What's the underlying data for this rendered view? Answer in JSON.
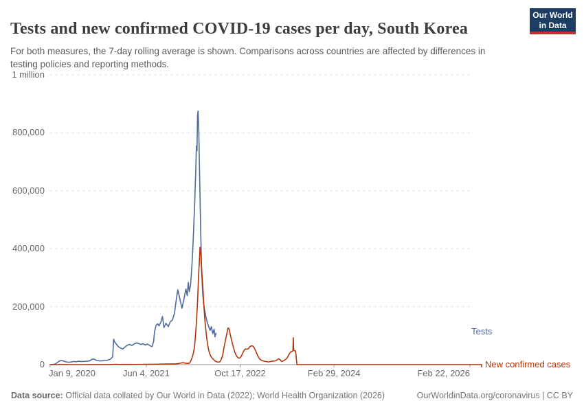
{
  "header": {
    "title": "Tests and new confirmed COVID-19 cases per day, South Korea",
    "subtitle": "For both measures, the 7-day rolling average is shown. Comparisons across countries are affected by differences in testing policies and reporting methods.",
    "logo": {
      "line1": "Our World",
      "line2": "in Data"
    }
  },
  "footer": {
    "source_label": "Data source:",
    "source_text": " Official data collated by Our World in Data (2022); World Health Organization (2026)",
    "link": "OurWorldinData.org/coronavirus | CC BY"
  },
  "colors": {
    "tests": "#4C6A9C",
    "cases": "#B13507",
    "logo_bg": "#1d3d63",
    "logo_bar": "#c4302b"
  },
  "chart_data": {
    "type": "line",
    "title": "Tests and new confirmed COVID-19 cases per day, South Korea",
    "grid": "dashed-horizontal",
    "legend_position": "right-of-line-end",
    "x_axis": {
      "type": "date",
      "min": "2020-01-09",
      "max": "2026-02-22",
      "ticks": [
        {
          "date": "2020-01-09",
          "label": "Jan 9, 2020",
          "align": "left"
        },
        {
          "date": "2021-06-04",
          "label": "Jun 4, 2021",
          "align": "center"
        },
        {
          "date": "2022-10-17",
          "label": "Oct 17, 2022",
          "align": "center"
        },
        {
          "date": "2024-02-29",
          "label": "Feb 29, 2024",
          "align": "center"
        },
        {
          "date": "2026-02-22",
          "label": "Feb 22, 2026",
          "align": "right"
        }
      ]
    },
    "y_axis": {
      "min": 0,
      "max": 1000000,
      "ticks": [
        {
          "value": 1000000,
          "label": "1 million"
        },
        {
          "value": 800000,
          "label": "800,000"
        },
        {
          "value": 600000,
          "label": "600,000"
        },
        {
          "value": 400000,
          "label": "400,000"
        },
        {
          "value": 200000,
          "label": "200,000"
        },
        {
          "value": 0,
          "label": "0"
        }
      ]
    },
    "series": [
      {
        "id": "tests",
        "name": "Tests",
        "color": "#4C6A9C",
        "points": [
          [
            "2020-01-09",
            100
          ],
          [
            "2020-01-24",
            400
          ],
          [
            "2020-02-06",
            2500
          ],
          [
            "2020-02-18",
            8000
          ],
          [
            "2020-02-28",
            12500
          ],
          [
            "2020-03-08",
            14000
          ],
          [
            "2020-03-18",
            13000
          ],
          [
            "2020-03-28",
            10500
          ],
          [
            "2020-04-08",
            9000
          ],
          [
            "2020-04-20",
            8200
          ],
          [
            "2020-05-02",
            9200
          ],
          [
            "2020-05-14",
            10800
          ],
          [
            "2020-05-26",
            10000
          ],
          [
            "2020-06-08",
            11500
          ],
          [
            "2020-06-20",
            10800
          ],
          [
            "2020-07-02",
            11000
          ],
          [
            "2020-07-14",
            11300
          ],
          [
            "2020-07-26",
            12200
          ],
          [
            "2020-08-08",
            13500
          ],
          [
            "2020-08-20",
            19000
          ],
          [
            "2020-09-01",
            18500
          ],
          [
            "2020-09-12",
            14500
          ],
          [
            "2020-09-24",
            13000
          ],
          [
            "2020-10-06",
            12700
          ],
          [
            "2020-10-18",
            13500
          ],
          [
            "2020-11-01",
            14300
          ],
          [
            "2020-11-14",
            16000
          ],
          [
            "2020-11-27",
            20000
          ],
          [
            "2020-12-07",
            27000
          ],
          [
            "2020-12-12",
            88000
          ],
          [
            "2020-12-17",
            79000
          ],
          [
            "2020-12-26",
            71000
          ],
          [
            "2021-01-06",
            62000
          ],
          [
            "2021-01-18",
            57000
          ],
          [
            "2021-01-30",
            54000
          ],
          [
            "2021-02-11",
            61000
          ],
          [
            "2021-02-23",
            67000
          ],
          [
            "2021-03-07",
            70000
          ],
          [
            "2021-03-19",
            66000
          ],
          [
            "2021-03-31",
            71000
          ],
          [
            "2021-04-12",
            75000
          ],
          [
            "2021-04-24",
            73000
          ],
          [
            "2021-05-06",
            70000
          ],
          [
            "2021-05-18",
            72000
          ],
          [
            "2021-05-30",
            67500
          ],
          [
            "2021-06-11",
            71000
          ],
          [
            "2021-06-23",
            65500
          ],
          [
            "2021-07-05",
            62000
          ],
          [
            "2021-07-13",
            80000
          ],
          [
            "2021-07-18",
            113000
          ],
          [
            "2021-07-26",
            135000
          ],
          [
            "2021-08-03",
            141000
          ],
          [
            "2021-08-11",
            134000
          ],
          [
            "2021-08-21",
            147000
          ],
          [
            "2021-08-29",
            166000
          ],
          [
            "2021-09-06",
            128000
          ],
          [
            "2021-09-17",
            143000
          ],
          [
            "2021-09-29",
            131000
          ],
          [
            "2021-10-10",
            148000
          ],
          [
            "2021-10-21",
            154000
          ],
          [
            "2021-11-01",
            176000
          ],
          [
            "2021-11-11",
            225000
          ],
          [
            "2021-11-19",
            258000
          ],
          [
            "2021-11-29",
            230000
          ],
          [
            "2021-12-11",
            194000
          ],
          [
            "2021-12-21",
            225000
          ],
          [
            "2022-01-01",
            261000
          ],
          [
            "2022-01-08",
            238000
          ],
          [
            "2022-01-14",
            284000
          ],
          [
            "2022-01-19",
            252000
          ],
          [
            "2022-01-26",
            275000
          ],
          [
            "2022-02-02",
            340000
          ],
          [
            "2022-02-09",
            430000
          ],
          [
            "2022-02-16",
            540000
          ],
          [
            "2022-02-22",
            660000
          ],
          [
            "2022-02-26",
            755000
          ],
          [
            "2022-03-01",
            738000
          ],
          [
            "2022-03-04",
            860000
          ],
          [
            "2022-03-07",
            875000
          ],
          [
            "2022-03-11",
            800000
          ],
          [
            "2022-03-16",
            620000
          ],
          [
            "2022-03-21",
            450000
          ],
          [
            "2022-03-26",
            320000
          ],
          [
            "2022-04-01",
            240000
          ],
          [
            "2022-04-08",
            198000
          ],
          [
            "2022-04-16",
            170000
          ],
          [
            "2022-04-24",
            148000
          ],
          [
            "2022-05-02",
            132000
          ],
          [
            "2022-05-10",
            118000
          ],
          [
            "2022-05-17",
            131000
          ],
          [
            "2022-05-24",
            107000
          ],
          [
            "2022-05-31",
            122000
          ],
          [
            "2022-06-05",
            96000
          ],
          [
            "2022-06-10",
            108000
          ]
        ]
      },
      {
        "id": "new-confirmed-cases",
        "name": "New confirmed cases",
        "color": "#B13507",
        "points": [
          [
            "2020-01-09",
            0
          ],
          [
            "2020-02-15",
            50
          ],
          [
            "2020-03-01",
            600
          ],
          [
            "2020-03-12",
            400
          ],
          [
            "2020-03-25",
            120
          ],
          [
            "2020-05-01",
            40
          ],
          [
            "2020-07-01",
            50
          ],
          [
            "2020-08-25",
            300
          ],
          [
            "2020-09-15",
            120
          ],
          [
            "2020-11-15",
            250
          ],
          [
            "2020-12-12",
            700
          ],
          [
            "2020-12-26",
            1000
          ],
          [
            "2021-01-15",
            500
          ],
          [
            "2021-03-01",
            400
          ],
          [
            "2021-05-01",
            600
          ],
          [
            "2021-07-15",
            1500
          ],
          [
            "2021-09-01",
            1800
          ],
          [
            "2021-10-01",
            2200
          ],
          [
            "2021-11-15",
            2600
          ],
          [
            "2021-12-15",
            6900
          ],
          [
            "2022-01-05",
            4200
          ],
          [
            "2022-01-16",
            4300
          ],
          [
            "2022-01-24",
            8000
          ],
          [
            "2022-02-01",
            20000
          ],
          [
            "2022-02-09",
            37000
          ],
          [
            "2022-02-16",
            60000
          ],
          [
            "2022-02-21",
            100000
          ],
          [
            "2022-02-26",
            145000
          ],
          [
            "2022-03-04",
            215000
          ],
          [
            "2022-03-09",
            300000
          ],
          [
            "2022-03-13",
            350000
          ],
          [
            "2022-03-17",
            405000
          ],
          [
            "2022-03-21",
            385000
          ],
          [
            "2022-03-26",
            330000
          ],
          [
            "2022-04-01",
            270000
          ],
          [
            "2022-04-07",
            200000
          ],
          [
            "2022-04-13",
            148000
          ],
          [
            "2022-04-19",
            108000
          ],
          [
            "2022-04-26",
            72000
          ],
          [
            "2022-05-03",
            48000
          ],
          [
            "2022-05-10",
            34000
          ],
          [
            "2022-05-18",
            25000
          ],
          [
            "2022-05-26",
            19000
          ],
          [
            "2022-06-04",
            13500
          ],
          [
            "2022-06-13",
            10000
          ],
          [
            "2022-06-22",
            8500
          ],
          [
            "2022-06-30",
            9500
          ],
          [
            "2022-07-08",
            17000
          ],
          [
            "2022-07-16",
            33000
          ],
          [
            "2022-07-24",
            62000
          ],
          [
            "2022-08-01",
            88000
          ],
          [
            "2022-08-08",
            110000
          ],
          [
            "2022-08-14",
            127000
          ],
          [
            "2022-08-19",
            123000
          ],
          [
            "2022-08-26",
            102000
          ],
          [
            "2022-09-03",
            80000
          ],
          [
            "2022-09-11",
            60000
          ],
          [
            "2022-09-19",
            42000
          ],
          [
            "2022-09-27",
            30000
          ],
          [
            "2022-10-05",
            24000
          ],
          [
            "2022-10-13",
            22000
          ],
          [
            "2022-10-21",
            27000
          ],
          [
            "2022-10-29",
            37000
          ],
          [
            "2022-11-06",
            48000
          ],
          [
            "2022-11-14",
            54000
          ],
          [
            "2022-11-22",
            53000
          ],
          [
            "2022-11-30",
            55000
          ],
          [
            "2022-12-08",
            62000
          ],
          [
            "2022-12-16",
            65000
          ],
          [
            "2022-12-24",
            64000
          ],
          [
            "2023-01-01",
            57000
          ],
          [
            "2023-01-09",
            45000
          ],
          [
            "2023-01-17",
            33000
          ],
          [
            "2023-01-25",
            23000
          ],
          [
            "2023-02-02",
            17000
          ],
          [
            "2023-02-10",
            14000
          ],
          [
            "2023-02-18",
            12500
          ],
          [
            "2023-02-26",
            11500
          ],
          [
            "2023-03-06",
            10500
          ],
          [
            "2023-03-14",
            9500
          ],
          [
            "2023-03-22",
            9800
          ],
          [
            "2023-03-30",
            11000
          ],
          [
            "2023-04-07",
            12500
          ],
          [
            "2023-04-15",
            12000
          ],
          [
            "2023-04-23",
            13000
          ],
          [
            "2023-05-01",
            16000
          ],
          [
            "2023-05-09",
            20000
          ],
          [
            "2023-05-17",
            18000
          ],
          [
            "2023-05-25",
            11000
          ],
          [
            "2023-06-02",
            12000
          ],
          [
            "2023-06-10",
            15500
          ],
          [
            "2023-06-18",
            19000
          ],
          [
            "2023-06-26",
            25000
          ],
          [
            "2023-07-04",
            35000
          ],
          [
            "2023-07-12",
            43000
          ],
          [
            "2023-07-20",
            46000
          ],
          [
            "2023-07-25",
            47000
          ],
          [
            "2023-07-27",
            93000
          ],
          [
            "2023-07-29",
            50000
          ],
          [
            "2023-08-03",
            48500
          ],
          [
            "2023-08-08",
            47000
          ],
          [
            "2023-08-11",
            30000
          ],
          [
            "2023-08-13",
            14000
          ],
          [
            "2023-08-16",
            0
          ],
          [
            "2026-02-22",
            0
          ]
        ]
      }
    ]
  }
}
